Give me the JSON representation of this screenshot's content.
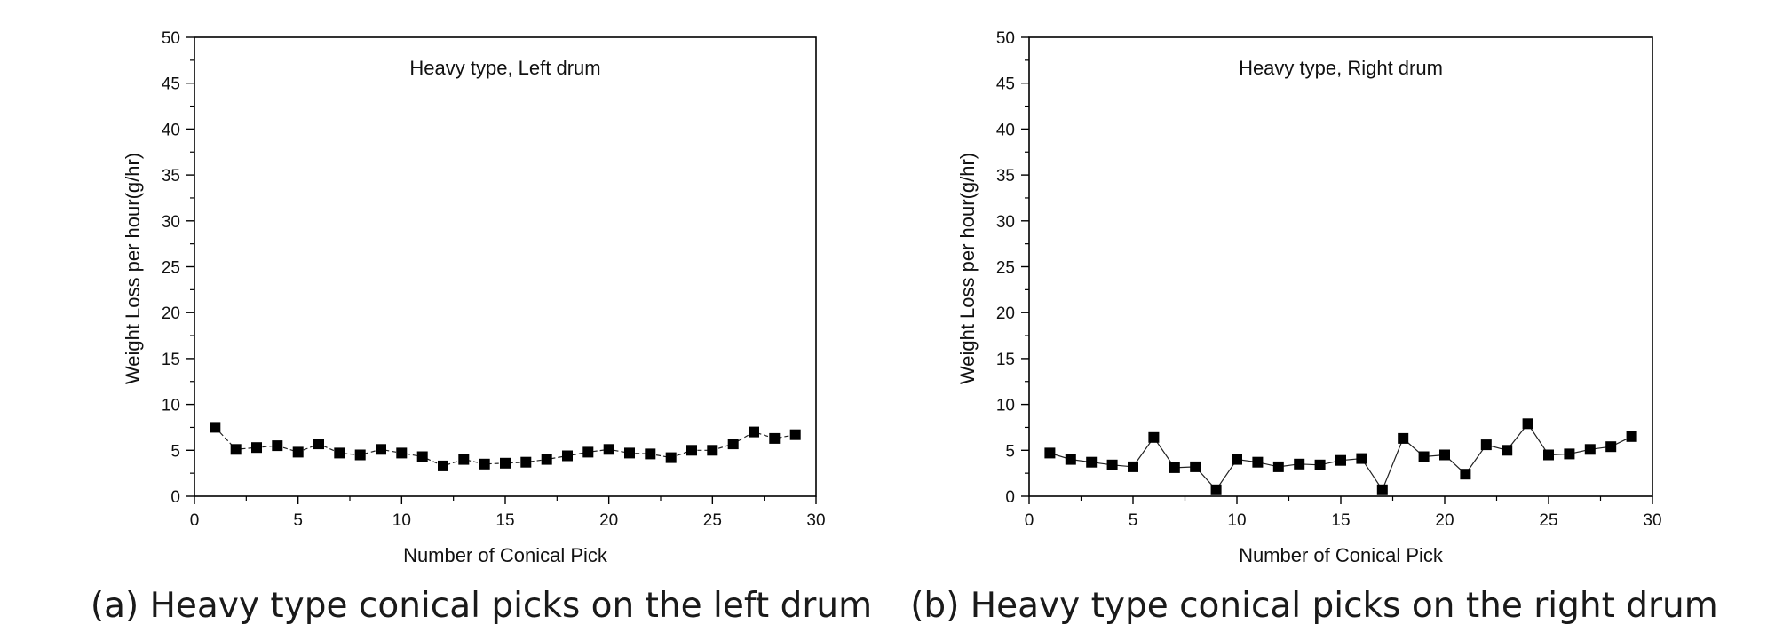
{
  "chart_data": [
    {
      "type": "line",
      "title": "Heavy type, Left drum",
      "caption": "(a) Heavy type conical picks on the left drum",
      "xlabel": "Number of Conical Pick",
      "ylabel": "Weight Loss per hour(g/hr)",
      "xlim": [
        0,
        30
      ],
      "ylim": [
        0,
        50
      ],
      "xticks": [
        "0",
        "5",
        "10",
        "15",
        "20",
        "25",
        "30"
      ],
      "yticks": [
        "0",
        "5",
        "10",
        "15",
        "20",
        "25",
        "30",
        "35",
        "40",
        "45",
        "50"
      ],
      "grid": false,
      "marker": "square",
      "line_style": "dashed",
      "x": [
        1,
        2,
        3,
        4,
        5,
        6,
        7,
        8,
        9,
        10,
        11,
        12,
        13,
        14,
        15,
        16,
        17,
        18,
        19,
        20,
        21,
        22,
        23,
        24,
        25,
        26,
        27,
        28,
        29
      ],
      "values": [
        7.5,
        5.1,
        5.3,
        5.5,
        4.8,
        5.7,
        4.7,
        4.5,
        5.1,
        4.7,
        4.3,
        3.3,
        4.0,
        3.5,
        3.6,
        3.7,
        4.0,
        4.4,
        4.8,
        5.1,
        4.7,
        4.6,
        4.2,
        5.0,
        5.0,
        5.7,
        7.0,
        6.3,
        6.7
      ]
    },
    {
      "type": "line",
      "title": "Heavy type, Right drum",
      "caption": "(b) Heavy type conical picks on the right drum",
      "xlabel": "Number of Conical Pick",
      "ylabel": "Weight Loss per hour(g/hr)",
      "xlim": [
        0,
        30
      ],
      "ylim": [
        0,
        50
      ],
      "xticks": [
        "0",
        "5",
        "10",
        "15",
        "20",
        "25",
        "30"
      ],
      "yticks": [
        "0",
        "5",
        "10",
        "15",
        "20",
        "25",
        "30",
        "35",
        "40",
        "45",
        "50"
      ],
      "grid": false,
      "marker": "square",
      "line_style": "solid",
      "x": [
        1,
        2,
        3,
        4,
        5,
        6,
        7,
        8,
        9,
        10,
        11,
        12,
        13,
        14,
        15,
        16,
        17,
        18,
        19,
        20,
        21,
        22,
        23,
        24,
        25,
        26,
        27,
        28,
        29
      ],
      "values": [
        4.7,
        4.0,
        3.7,
        3.4,
        3.2,
        6.4,
        3.1,
        3.2,
        0.7,
        4.0,
        3.7,
        3.2,
        3.5,
        3.4,
        3.9,
        4.1,
        0.7,
        6.3,
        4.3,
        4.5,
        2.4,
        5.6,
        5.0,
        7.9,
        4.5,
        4.6,
        5.1,
        5.4,
        6.5
      ]
    }
  ]
}
